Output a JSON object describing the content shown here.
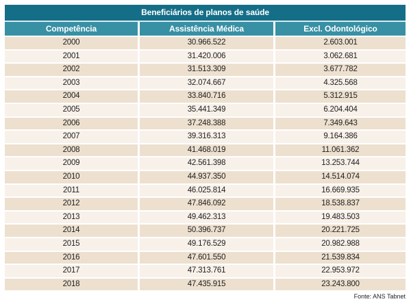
{
  "title": "Beneficiários de planos de saúde",
  "table": {
    "columns": [
      "Competência",
      "Assistência Médica",
      "Excl. Odontológico"
    ],
    "rows": [
      [
        "2000",
        "30.966.522",
        "2.603.001"
      ],
      [
        "2001",
        "31.420.006",
        "3.062.681"
      ],
      [
        "2002",
        "31.513.309",
        "3.677.782"
      ],
      [
        "2003",
        "32.074.667",
        "4.325.568"
      ],
      [
        "2004",
        "33.840.716",
        "5.312.915"
      ],
      [
        "2005",
        "35.441.349",
        "6.204.404"
      ],
      [
        "2006",
        "37.248.388",
        "7.349.643"
      ],
      [
        "2007",
        "39.316.313",
        "9.164.386"
      ],
      [
        "2008",
        "41.468.019",
        "11.061.362"
      ],
      [
        "2009",
        "42.561.398",
        "13.253.744"
      ],
      [
        "2010",
        "44.937.350",
        "14.514.074"
      ],
      [
        "2011",
        "46.025.814",
        "16.669.935"
      ],
      [
        "2012",
        "47.846.092",
        "18.538.837"
      ],
      [
        "2013",
        "49.462.313",
        "19.483.503"
      ],
      [
        "2014",
        "50.396.737",
        "20.221.725"
      ],
      [
        "2015",
        "49.176.529",
        "20.982.988"
      ],
      [
        "2016",
        "47.601.550",
        "21.539.834"
      ],
      [
        "2017",
        "47.313.761",
        "22.953.972"
      ],
      [
        "2018",
        "47.435.915",
        "23.243.800"
      ]
    ]
  },
  "footer": {
    "source": "Fonte: ANS Tabnet"
  },
  "colors": {
    "title_bg": "#156E87",
    "header_bg": "#3890A4",
    "row_dark": "#EDE0CF",
    "row_light": "#F8F1E9",
    "text": "#1e1e1e"
  },
  "chart_data": {
    "type": "table",
    "title": "Beneficiários de planos de saúde",
    "columns": [
      "Competência",
      "Assistência Médica",
      "Excl. Odontológico"
    ],
    "categories": [
      "2000",
      "2001",
      "2002",
      "2003",
      "2004",
      "2005",
      "2006",
      "2007",
      "2008",
      "2009",
      "2010",
      "2011",
      "2012",
      "2013",
      "2014",
      "2015",
      "2016",
      "2017",
      "2018"
    ],
    "series": [
      {
        "name": "Assistência Médica",
        "values": [
          30966522,
          31420006,
          31513309,
          32074667,
          33840716,
          35441349,
          37248388,
          39316313,
          41468019,
          42561398,
          44937350,
          46025814,
          47846092,
          49462313,
          50396737,
          49176529,
          47601550,
          47313761,
          47435915
        ]
      },
      {
        "name": "Excl. Odontológico",
        "values": [
          2603001,
          3062681,
          3677782,
          4325568,
          5312915,
          6204404,
          7349643,
          9164386,
          11061362,
          13253744,
          14514074,
          16669935,
          18538837,
          19483503,
          20221725,
          20982988,
          21539834,
          22953972,
          23243800
        ]
      }
    ],
    "source": "Fonte: ANS Tabnet"
  }
}
